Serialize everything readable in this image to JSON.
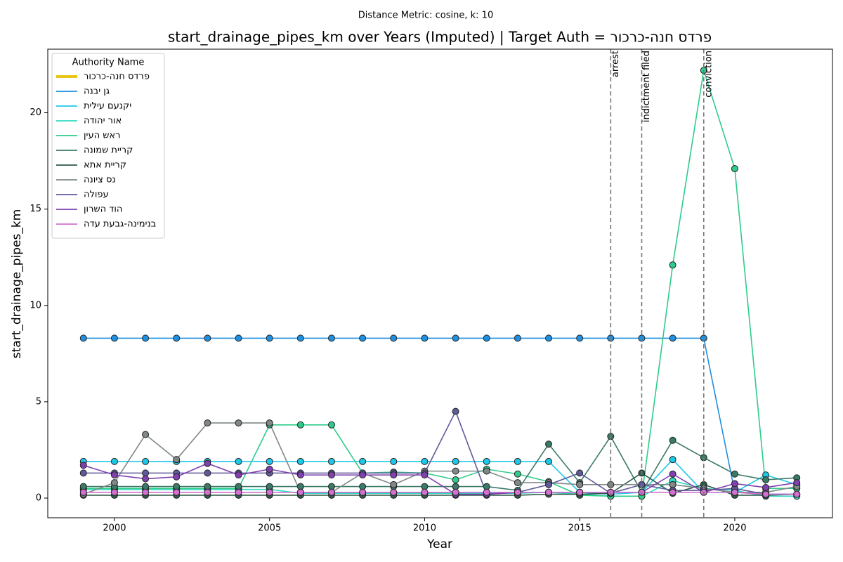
{
  "chart_data": {
    "type": "line",
    "suptitle": "Distance Metric: cosine, k: 10",
    "title": "start_drainage_pipes_km over Years (Imputed) | Target Auth = רוכרכ-הנח סדרפ",
    "xlabel": "Year",
    "ylabel": "start_drainage_pipes_km",
    "legend_title": "Authority Name",
    "legend": "upper left",
    "x": [
      1999,
      2000,
      2001,
      2002,
      2003,
      2004,
      2005,
      2006,
      2007,
      2008,
      2009,
      2010,
      2011,
      2012,
      2013,
      2014,
      2015,
      2016,
      2017,
      2018,
      2019,
      2020,
      2021,
      2022
    ],
    "xlim": [
      1997.85,
      2023.15
    ],
    "xticks": [
      2000,
      2005,
      2010,
      2015,
      2020
    ],
    "ylim": [
      -1.02,
      23.3
    ],
    "yticks": [
      0,
      5,
      10,
      15,
      20
    ],
    "events": [
      {
        "x": 2016,
        "label": "arrest"
      },
      {
        "x": 2017,
        "label": "indictment filed"
      },
      {
        "x": 2019,
        "label": "conviction"
      }
    ],
    "series": [
      {
        "name": "רוכרכ-הנח סדרפ",
        "color": "#e8c619",
        "values": [
          null,
          null,
          null,
          null,
          null,
          null,
          null,
          null,
          null,
          null,
          null,
          null,
          null,
          null,
          null,
          null,
          null,
          null,
          null,
          null,
          null,
          null,
          null,
          null
        ]
      },
      {
        "name": "הנבי ןג",
        "color": "#1f8fe0",
        "values": [
          8.3,
          8.3,
          8.3,
          8.3,
          8.3,
          8.3,
          8.3,
          8.3,
          8.3,
          8.3,
          8.3,
          8.3,
          8.3,
          8.3,
          8.3,
          8.3,
          8.3,
          8.3,
          8.3,
          8.3,
          8.3,
          0.3,
          0.2,
          0.2
        ]
      },
      {
        "name": "תיליע םענקי",
        "color": "#1ec8e8",
        "values": [
          1.9,
          1.9,
          1.9,
          1.9,
          1.9,
          1.9,
          1.9,
          1.9,
          1.9,
          1.9,
          1.9,
          1.9,
          1.9,
          1.9,
          1.9,
          1.9,
          0.3,
          0.2,
          0.3,
          2.0,
          0.3,
          0.3,
          1.2,
          0.7
        ]
      },
      {
        "name": "הדוהי רוא",
        "color": "#2edcc0",
        "values": [
          0.45,
          0.45,
          0.45,
          0.45,
          0.45,
          0.45,
          0.45,
          0.25,
          0.25,
          0.25,
          0.25,
          0.25,
          0.25,
          0.25,
          0.25,
          0.3,
          0.2,
          0.1,
          0.1,
          0.9,
          0.5,
          0.4,
          0.1,
          0.1
        ]
      },
      {
        "name": "ןיעה שאר",
        "color": "#2ecc8a",
        "values": [
          0.5,
          0.5,
          0.5,
          0.5,
          0.5,
          0.5,
          3.8,
          3.8,
          3.8,
          1.3,
          1.35,
          1.3,
          0.95,
          1.5,
          1.25,
          0.85,
          0.15,
          0.1,
          0.1,
          12.1,
          22.2,
          17.1,
          0.5,
          0.5
        ]
      },
      {
        "name": "הנומש תיירק",
        "color": "#3a7a68",
        "values": [
          0.6,
          0.6,
          0.6,
          0.6,
          0.6,
          0.6,
          0.6,
          0.6,
          0.6,
          0.6,
          0.6,
          0.6,
          0.6,
          0.6,
          0.4,
          2.8,
          0.8,
          3.2,
          0.3,
          3.0,
          2.1,
          1.25,
          0.95,
          1.05
        ]
      },
      {
        "name": "אתא תיירק",
        "color": "#2e5a48",
        "values": [
          0.15,
          0.15,
          0.15,
          0.15,
          0.15,
          0.15,
          0.15,
          0.15,
          0.15,
          0.15,
          0.15,
          0.15,
          0.15,
          0.15,
          0.15,
          0.2,
          0.2,
          0.25,
          1.3,
          0.25,
          0.7,
          0.15,
          0.15,
          0.2
        ]
      },
      {
        "name": "הנויצ סנ",
        "color": "#808888",
        "values": [
          0.2,
          0.8,
          3.3,
          2.0,
          3.9,
          3.9,
          3.9,
          0.3,
          0.3,
          1.3,
          0.7,
          1.4,
          1.4,
          1.4,
          0.8,
          0.8,
          0.7,
          0.7,
          0.7,
          0.7,
          0.5,
          0.3,
          0.3,
          0.6
        ]
      },
      {
        "name": "הלופע",
        "color": "#5f5a9a",
        "values": [
          1.3,
          1.3,
          1.3,
          1.3,
          1.3,
          1.3,
          1.3,
          1.3,
          1.3,
          1.3,
          1.3,
          1.3,
          4.5,
          0.2,
          0.3,
          0.7,
          1.3,
          0.25,
          0.7,
          0.4,
          0.4,
          0.5,
          0.2,
          0.2
        ]
      },
      {
        "name": "ןורשה דוה",
        "color": "#8040b0",
        "values": [
          1.7,
          1.2,
          1.0,
          1.1,
          1.8,
          1.2,
          1.5,
          1.2,
          1.2,
          1.2,
          1.2,
          1.2,
          0.2,
          0.2,
          0.3,
          0.3,
          0.3,
          0.3,
          0.3,
          1.25,
          0.3,
          0.75,
          0.55,
          0.8
        ]
      },
      {
        "name": "הדע תעבג-הנימינב",
        "color": "#d070d0",
        "values": [
          0.3,
          0.3,
          0.3,
          0.3,
          0.3,
          0.3,
          0.3,
          0.3,
          0.3,
          0.3,
          0.3,
          0.3,
          0.3,
          0.3,
          0.3,
          0.3,
          0.3,
          0.3,
          0.3,
          0.3,
          0.3,
          0.3,
          0.2,
          0.2
        ]
      }
    ]
  }
}
